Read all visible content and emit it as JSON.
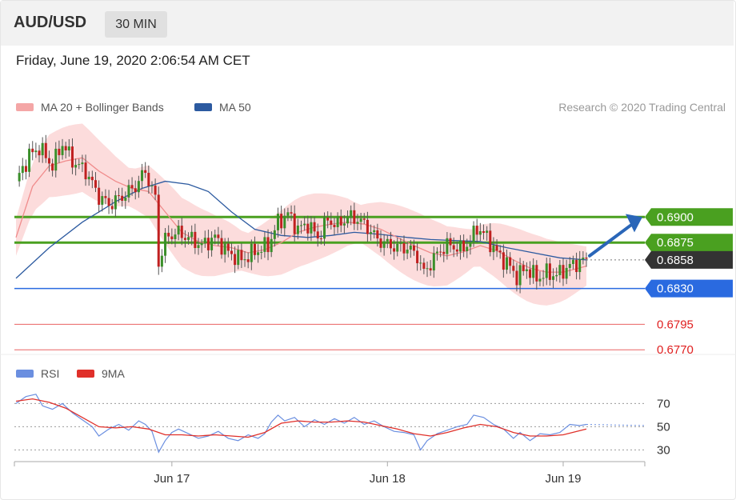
{
  "header": {
    "pair": "AUD/USD",
    "timeframe": "30 MIN",
    "datetime": "Friday, June 19, 2020 2:06:54 AM CET"
  },
  "legend": {
    "ma20_label": "MA 20 + Bollinger Bands",
    "ma50_label": "MA 50",
    "credit": "Research © 2020 Trading Central",
    "ma20_color": "#f08c8c",
    "ma50_color": "#2c5aa0"
  },
  "rsi_legend": {
    "rsi_label": "RSI",
    "ma_label": "9MA",
    "rsi_color": "#6b8fe0",
    "ma_color": "#e0302a"
  },
  "chart_data": [
    {
      "type": "candlestick",
      "title": "AUD/USD 30 MIN",
      "x_ticks": [
        "Jun 17",
        "Jun 18",
        "Jun 19"
      ],
      "ylim": [
        0.676,
        0.6995
      ],
      "levels": [
        {
          "name": "resistance 2",
          "value": 0.69,
          "label": "0.6900",
          "color": "#4aa020"
        },
        {
          "name": "resistance 1",
          "value": 0.6875,
          "label": "0.6875",
          "color": "#4aa020"
        },
        {
          "name": "current price",
          "value": 0.6858,
          "label": "0.6858",
          "color": "#333333"
        },
        {
          "name": "pivot",
          "value": 0.683,
          "label": "0.6830",
          "color": "#2a6ae0"
        },
        {
          "name": "support 1",
          "value": 0.6795,
          "label": "0.6795",
          "color": "#e02020"
        },
        {
          "name": "support 2",
          "value": 0.677,
          "label": "0.6770",
          "color": "#e02020"
        }
      ],
      "close_path": [
        [
          0,
          0.6935
        ],
        [
          4,
          0.696
        ],
        [
          7,
          0.6968
        ],
        [
          11,
          0.695
        ],
        [
          14,
          0.6972
        ],
        [
          17,
          0.6955
        ],
        [
          21,
          0.6945
        ],
        [
          25,
          0.692
        ],
        [
          28,
          0.6912
        ],
        [
          32,
          0.692
        ],
        [
          36,
          0.693
        ],
        [
          39,
          0.6945
        ],
        [
          42,
          0.6918
        ],
        [
          43,
          0.6855
        ],
        [
          45,
          0.6878
        ],
        [
          48,
          0.6885
        ],
        [
          52,
          0.688
        ],
        [
          56,
          0.6872
        ],
        [
          60,
          0.688
        ],
        [
          64,
          0.6865
        ],
        [
          68,
          0.6858
        ],
        [
          72,
          0.6866
        ],
        [
          76,
          0.6872
        ],
        [
          79,
          0.6895
        ],
        [
          82,
          0.6903
        ],
        [
          85,
          0.6888
        ],
        [
          88,
          0.6893
        ],
        [
          91,
          0.688
        ],
        [
          94,
          0.6897
        ],
        [
          97,
          0.6892
        ],
        [
          100,
          0.69
        ],
        [
          103,
          0.6898
        ],
        [
          106,
          0.689
        ],
        [
          109,
          0.6878
        ],
        [
          112,
          0.6873
        ],
        [
          115,
          0.687
        ],
        [
          118,
          0.687
        ],
        [
          121,
          0.6862
        ],
        [
          123,
          0.6845
        ],
        [
          125,
          0.6855
        ],
        [
          128,
          0.6868
        ],
        [
          131,
          0.6873
        ],
        [
          134,
          0.6868
        ],
        [
          137,
          0.6876
        ],
        [
          139,
          0.689
        ],
        [
          142,
          0.688
        ],
        [
          145,
          0.6865
        ],
        [
          148,
          0.6855
        ],
        [
          151,
          0.6842
        ],
        [
          154,
          0.685
        ],
        [
          157,
          0.684
        ],
        [
          160,
          0.6845
        ],
        [
          163,
          0.6843
        ],
        [
          166,
          0.685
        ],
        [
          169,
          0.6855
        ],
        [
          172,
          0.6858
        ]
      ],
      "ma20_path": [
        [
          0,
          0.688
        ],
        [
          5,
          0.693
        ],
        [
          10,
          0.695
        ],
        [
          15,
          0.6955
        ],
        [
          20,
          0.6958
        ],
        [
          25,
          0.6945
        ],
        [
          30,
          0.6935
        ],
        [
          35,
          0.6928
        ],
        [
          40,
          0.6925
        ],
        [
          45,
          0.6905
        ],
        [
          50,
          0.6885
        ],
        [
          55,
          0.6876
        ],
        [
          60,
          0.6872
        ],
        [
          65,
          0.687
        ],
        [
          70,
          0.6865
        ],
        [
          75,
          0.6868
        ],
        [
          80,
          0.6875
        ],
        [
          85,
          0.6885
        ],
        [
          90,
          0.689
        ],
        [
          95,
          0.6893
        ],
        [
          100,
          0.6895
        ],
        [
          105,
          0.6893
        ],
        [
          110,
          0.6888
        ],
        [
          115,
          0.688
        ],
        [
          120,
          0.6872
        ],
        [
          125,
          0.6865
        ],
        [
          130,
          0.6862
        ],
        [
          135,
          0.6866
        ],
        [
          140,
          0.6872
        ],
        [
          145,
          0.6867
        ],
        [
          150,
          0.6858
        ],
        [
          155,
          0.685
        ],
        [
          160,
          0.6846
        ],
        [
          165,
          0.6846
        ],
        [
          172,
          0.6852
        ]
      ],
      "ma50_path": [
        [
          0,
          0.684
        ],
        [
          10,
          0.687
        ],
        [
          20,
          0.6895
        ],
        [
          30,
          0.6915
        ],
        [
          38,
          0.6928
        ],
        [
          45,
          0.6935
        ],
        [
          52,
          0.6932
        ],
        [
          58,
          0.6925
        ],
        [
          65,
          0.6905
        ],
        [
          72,
          0.6888
        ],
        [
          80,
          0.6882
        ],
        [
          88,
          0.688
        ],
        [
          95,
          0.6882
        ],
        [
          102,
          0.6885
        ],
        [
          110,
          0.6883
        ],
        [
          118,
          0.688
        ],
        [
          125,
          0.6878
        ],
        [
          132,
          0.6877
        ],
        [
          140,
          0.6876
        ],
        [
          148,
          0.687
        ],
        [
          156,
          0.6865
        ],
        [
          164,
          0.686
        ],
        [
          172,
          0.6858
        ]
      ]
    },
    {
      "type": "line",
      "title": "RSI",
      "y_ticks": [
        70,
        50,
        30
      ],
      "ylim": [
        22,
        82
      ],
      "series": [
        {
          "name": "RSI",
          "values": [
            [
              0,
              70
            ],
            [
              3,
              76
            ],
            [
              6,
              78
            ],
            [
              8,
              68
            ],
            [
              11,
              65
            ],
            [
              14,
              70
            ],
            [
              17,
              62
            ],
            [
              20,
              56
            ],
            [
              23,
              50
            ],
            [
              25,
              42
            ],
            [
              28,
              48
            ],
            [
              31,
              52
            ],
            [
              34,
              47
            ],
            [
              37,
              55
            ],
            [
              39,
              52
            ],
            [
              41,
              46
            ],
            [
              43,
              28
            ],
            [
              45,
              38
            ],
            [
              47,
              45
            ],
            [
              49,
              48
            ],
            [
              52,
              44
            ],
            [
              55,
              40
            ],
            [
              58,
              42
            ],
            [
              61,
              46
            ],
            [
              64,
              40
            ],
            [
              67,
              38
            ],
            [
              70,
              43
            ],
            [
              73,
              40
            ],
            [
              75,
              44
            ],
            [
              77,
              54
            ],
            [
              79,
              60
            ],
            [
              81,
              55
            ],
            [
              84,
              58
            ],
            [
              87,
              50
            ],
            [
              90,
              56
            ],
            [
              93,
              52
            ],
            [
              96,
              57
            ],
            [
              99,
              53
            ],
            [
              102,
              58
            ],
            [
              105,
              52
            ],
            [
              108,
              55
            ],
            [
              111,
              50
            ],
            [
              114,
              46
            ],
            [
              117,
              45
            ],
            [
              120,
              43
            ],
            [
              122,
              30
            ],
            [
              124,
              38
            ],
            [
              127,
              44
            ],
            [
              130,
              47
            ],
            [
              133,
              50
            ],
            [
              136,
              52
            ],
            [
              138,
              60
            ],
            [
              141,
              58
            ],
            [
              144,
              52
            ],
            [
              147,
              48
            ],
            [
              150,
              40
            ],
            [
              152,
              45
            ],
            [
              155,
              38
            ],
            [
              158,
              44
            ],
            [
              161,
              43
            ],
            [
              164,
              45
            ],
            [
              167,
              52
            ],
            [
              170,
              51
            ],
            [
              172,
              52
            ]
          ]
        },
        {
          "name": "9MA",
          "values": [
            [
              0,
              72
            ],
            [
              5,
              74
            ],
            [
              10,
              71
            ],
            [
              15,
              66
            ],
            [
              20,
              58
            ],
            [
              25,
              50
            ],
            [
              30,
              49
            ],
            [
              35,
              50
            ],
            [
              40,
              48
            ],
            [
              45,
              43
            ],
            [
              50,
              43
            ],
            [
              55,
              42
            ],
            [
              60,
              43
            ],
            [
              65,
              42
            ],
            [
              70,
              41
            ],
            [
              75,
              45
            ],
            [
              80,
              53
            ],
            [
              85,
              55
            ],
            [
              90,
              54
            ],
            [
              95,
              54
            ],
            [
              100,
              55
            ],
            [
              105,
              54
            ],
            [
              110,
              51
            ],
            [
              115,
              48
            ],
            [
              120,
              44
            ],
            [
              125,
              42
            ],
            [
              130,
              45
            ],
            [
              135,
              49
            ],
            [
              140,
              52
            ],
            [
              145,
              50
            ],
            [
              150,
              45
            ],
            [
              155,
              42
            ],
            [
              160,
              42
            ],
            [
              165,
              43
            ],
            [
              172,
              48
            ]
          ]
        }
      ]
    }
  ]
}
